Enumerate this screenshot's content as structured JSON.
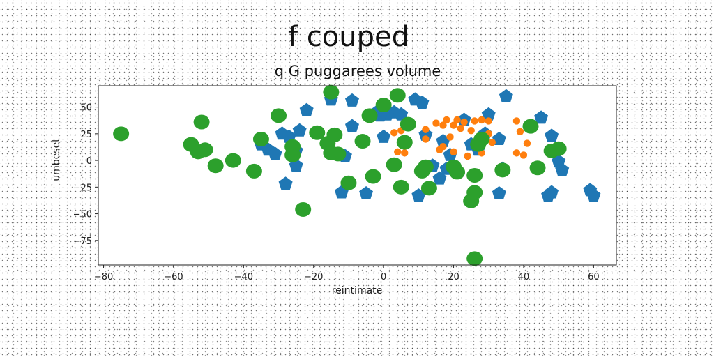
{
  "chart_data": {
    "type": "scatter",
    "title": "f couped",
    "subtitle": "q G puggarees volume",
    "xlabel": "reintimate",
    "ylabel": "umbeset",
    "xlim": [
      -81.5,
      66.5
    ],
    "ylim": [
      -98,
      70
    ],
    "xticks": [
      -80,
      -60,
      -40,
      -20,
      0,
      20,
      40,
      60
    ],
    "yticks": [
      -75,
      -50,
      -25,
      0,
      25,
      50
    ],
    "grid": false,
    "legend": "none",
    "series": [
      {
        "marker": "pentagon",
        "color": "#1f77b4",
        "points": [
          [
            35,
            60
          ],
          [
            -15,
            57
          ],
          [
            -9,
            56
          ],
          [
            9,
            57
          ],
          [
            11,
            54
          ],
          [
            -22,
            47
          ],
          [
            3,
            45
          ],
          [
            -2,
            45
          ],
          [
            1,
            43
          ],
          [
            5,
            43
          ],
          [
            -1,
            42
          ],
          [
            23,
            38
          ],
          [
            30,
            43
          ],
          [
            45,
            40
          ],
          [
            -29,
            25
          ],
          [
            -27,
            22
          ],
          [
            -24,
            28
          ],
          [
            -9,
            32
          ],
          [
            0,
            22
          ],
          [
            12,
            24
          ],
          [
            17,
            18
          ],
          [
            29,
            25
          ],
          [
            33,
            20
          ],
          [
            48,
            23
          ],
          [
            -35,
            15
          ],
          [
            -33,
            10
          ],
          [
            -31,
            6
          ],
          [
            -26,
            13
          ],
          [
            -25,
            9
          ],
          [
            -11,
            4
          ],
          [
            19,
            5
          ],
          [
            27,
            10
          ],
          [
            25,
            15
          ],
          [
            -25,
            -5
          ],
          [
            14,
            -5
          ],
          [
            18,
            -8
          ],
          [
            34,
            -8
          ],
          [
            50,
            -1
          ],
          [
            51,
            -9
          ],
          [
            -28,
            -22
          ],
          [
            -12,
            -30
          ],
          [
            -5,
            -31
          ],
          [
            10,
            -33
          ],
          [
            16,
            -17
          ],
          [
            33,
            -31
          ],
          [
            47,
            -33
          ],
          [
            48,
            -30
          ],
          [
            59,
            -28
          ],
          [
            60,
            -33
          ]
        ]
      },
      {
        "marker": "circle-small",
        "color": "#ff7f0e",
        "points": [
          [
            18,
            38
          ],
          [
            21,
            38
          ],
          [
            23,
            36
          ],
          [
            26,
            37
          ],
          [
            28,
            38
          ],
          [
            30,
            37
          ],
          [
            38,
            37
          ],
          [
            20,
            33
          ],
          [
            22,
            30
          ],
          [
            15,
            35
          ],
          [
            17,
            33
          ],
          [
            25,
            28
          ],
          [
            12,
            29
          ],
          [
            7,
            37
          ],
          [
            5,
            28
          ],
          [
            3,
            26
          ],
          [
            30,
            25
          ],
          [
            39,
            27
          ],
          [
            19,
            22
          ],
          [
            31,
            17
          ],
          [
            41,
            16
          ],
          [
            12,
            20
          ],
          [
            17,
            13
          ],
          [
            4,
            8
          ],
          [
            6,
            7
          ],
          [
            16,
            10
          ],
          [
            20,
            8
          ],
          [
            24,
            4
          ],
          [
            28,
            7
          ],
          [
            38,
            7
          ],
          [
            40,
            5
          ],
          [
            22,
            -10
          ]
        ]
      },
      {
        "marker": "circle-large",
        "color": "#2ca02c",
        "points": [
          [
            -75,
            25
          ],
          [
            -55,
            15
          ],
          [
            -53,
            8
          ],
          [
            -52,
            36
          ],
          [
            -51,
            10
          ],
          [
            -48,
            -5
          ],
          [
            -43,
            0
          ],
          [
            -37,
            -10
          ],
          [
            -35,
            20
          ],
          [
            -30,
            42
          ],
          [
            -26,
            13
          ],
          [
            -26,
            5
          ],
          [
            -23,
            -46
          ],
          [
            -19,
            26
          ],
          [
            -16,
            16
          ],
          [
            -15,
            64
          ],
          [
            -15,
            7
          ],
          [
            -14,
            24
          ],
          [
            -13,
            6
          ],
          [
            -10,
            -21
          ],
          [
            -6,
            18
          ],
          [
            -4,
            42
          ],
          [
            -3,
            -15
          ],
          [
            0,
            52
          ],
          [
            3,
            -4
          ],
          [
            4,
            61
          ],
          [
            5,
            -25
          ],
          [
            6,
            17
          ],
          [
            7,
            34
          ],
          [
            11,
            -10
          ],
          [
            12,
            -6
          ],
          [
            13,
            -26
          ],
          [
            20,
            -6
          ],
          [
            21,
            -11
          ],
          [
            26,
            -14
          ],
          [
            26,
            -30
          ],
          [
            25,
            -38
          ],
          [
            26,
            -92
          ],
          [
            27,
            15
          ],
          [
            28,
            20
          ],
          [
            34,
            -9
          ],
          [
            42,
            32
          ],
          [
            44,
            -7
          ],
          [
            48,
            9
          ],
          [
            50,
            11
          ]
        ]
      }
    ]
  }
}
